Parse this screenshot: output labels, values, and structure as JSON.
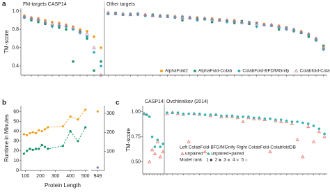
{
  "panels": [
    "a",
    "b",
    "c"
  ],
  "chart_data": [
    {
      "type": "dot",
      "title": "FM-targets CASP14",
      "y_label": "TM-score",
      "categories": [
        null,
        null,
        null,
        null,
        null,
        null,
        null,
        null,
        null,
        null,
        null,
        null
      ],
      "ylim": [
        0.3,
        1.03
      ],
      "yticks": [
        0.4,
        0.6,
        0.8,
        {
          "value": 1.0,
          "label": "1.0"
        }
      ],
      "series": [
        {
          "color": "#f0a020",
          "shape": "circle",
          "values": [
            0.95,
            0.93,
            0.92,
            0.9,
            0.88,
            0.87,
            0.85,
            0.83,
            0.8,
            0.78,
            0.72,
            0.6
          ]
        },
        {
          "color": "#17906a",
          "shape": "square",
          "values": [
            0.93,
            0.9,
            0.88,
            0.86,
            0.84,
            0.82,
            0.8,
            0.45,
            0.78,
            0.7,
            0.35,
            0.45
          ]
        },
        {
          "color": "#2aa6b8",
          "shape": "diamond",
          "values": [
            0.94,
            0.92,
            0.9,
            0.88,
            0.83,
            0.84,
            0.83,
            0.8,
            0.76,
            0.72,
            0.55,
            0.4
          ]
        },
        {
          "color": "#c27aa8",
          "shape": "triangle",
          "values": [
            0.94,
            0.92,
            0.91,
            0.88,
            0.86,
            0.85,
            0.84,
            0.82,
            0.78,
            0.75,
            0.6,
            0.3
          ]
        }
      ]
    },
    {
      "type": "dot",
      "title": "Other targets",
      "categories": [
        null,
        null,
        null,
        null,
        null,
        null,
        null,
        null,
        null,
        null,
        null,
        null,
        null,
        null,
        null,
        null,
        null,
        null,
        null,
        null,
        null,
        null,
        null,
        null,
        null,
        null,
        null,
        null,
        null,
        null
      ],
      "ylim": [
        0.3,
        1.03
      ],
      "legend": "bottom-right",
      "series": [
        {
          "name": "AlphaFold2",
          "color": "#f0a020",
          "shape": "circle",
          "values": [
            0.98,
            0.98,
            0.97,
            0.97,
            0.97,
            0.96,
            0.96,
            0.95,
            0.95,
            0.94,
            0.94,
            0.93,
            0.93,
            0.92,
            0.92,
            0.91,
            0.9,
            0.9,
            0.89,
            0.88,
            0.87,
            0.86,
            0.85,
            0.84,
            0.82,
            0.8,
            0.78,
            0.75,
            0.7,
            0.6
          ]
        },
        {
          "name": "AlphaFold-Colab",
          "color": "#17906a",
          "shape": "square",
          "values": [
            0.97,
            0.98,
            0.96,
            0.96,
            0.97,
            0.95,
            0.96,
            0.94,
            0.95,
            0.93,
            0.9,
            0.93,
            0.92,
            0.91,
            0.88,
            0.9,
            0.89,
            0.87,
            0.89,
            0.86,
            0.87,
            0.85,
            0.84,
            0.8,
            0.82,
            0.78,
            0.76,
            0.72,
            0.68,
            0.62
          ]
        },
        {
          "name": "ColabFold-BFD/MGnify",
          "color": "#2aa6b8",
          "shape": "diamond",
          "values": [
            0.97,
            0.97,
            0.96,
            0.97,
            0.96,
            0.95,
            0.95,
            0.95,
            0.94,
            0.93,
            0.94,
            0.92,
            0.9,
            0.92,
            0.91,
            0.9,
            0.88,
            0.89,
            0.87,
            0.88,
            0.83,
            0.85,
            0.84,
            0.83,
            0.8,
            0.79,
            0.77,
            0.74,
            0.69,
            0.58
          ]
        },
        {
          "name": "Colabfold-ColabfoldDB",
          "color": "#c27aa8",
          "shape": "triangle",
          "values": [
            0.98,
            0.97,
            0.97,
            0.96,
            0.97,
            0.96,
            0.95,
            0.95,
            0.94,
            0.94,
            0.93,
            0.93,
            0.92,
            0.92,
            0.91,
            0.9,
            0.9,
            0.89,
            0.88,
            0.87,
            0.86,
            0.85,
            0.85,
            0.83,
            0.81,
            0.8,
            0.77,
            0.75,
            0.7,
            0.6
          ]
        }
      ]
    },
    {
      "type": "line",
      "y_label": "Runtime in Minutes",
      "x_label": "Protein Length",
      "x": [
        90,
        110,
        130,
        150,
        170,
        190,
        210,
        230,
        250,
        350,
        400,
        450,
        500
      ],
      "xlim": [
        70,
        520
      ],
      "xticks": [
        100,
        200,
        300,
        400,
        500
      ],
      "ylim": [
        0,
        66
      ],
      "yticks": [
        0,
        10,
        20,
        30,
        40,
        50,
        60
      ],
      "series": [
        {
          "color": "#f0a020",
          "values": [
            37,
            36,
            38,
            39,
            38,
            41,
            40,
            42,
            44,
            45,
            55,
            52,
            62
          ]
        },
        {
          "color": "#17906a",
          "values": [
            17,
            20,
            22,
            21,
            22,
            22,
            26,
            24,
            22,
            25,
            40,
            30,
            44
          ]
        }
      ]
    },
    {
      "type": "line",
      "x": [
        949
      ],
      "xlim": [
        900,
        1000
      ],
      "xticks": [
        949
      ],
      "ylim": [
        0,
        340
      ],
      "yticks": [
        100,
        200,
        300
      ],
      "series": [
        {
          "color": "#f0a020",
          "values": [
            310
          ]
        },
        {
          "color": "#8a6fb0",
          "values": [
            15
          ]
        }
      ]
    },
    {
      "type": "dot",
      "title": "CASP14",
      "y_label": "TM-score",
      "categories": [
        null,
        null,
        null,
        null,
        null,
        null,
        null,
        null
      ],
      "ylim": [
        0.38,
        1.06
      ],
      "yticks": [
        {
          "value": 0.5,
          "label": "0.50"
        },
        {
          "value": 0.75,
          "label": "0.75"
        },
        {
          "value": 1.0,
          "label": "1.00"
        }
      ],
      "series": [
        {
          "color": "#e8736c",
          "shape": "triangle",
          "values": [
            0.98,
            0.97,
            0.5,
            0.62,
            0.58,
            0.7,
            0.55,
            0.6
          ]
        },
        {
          "color": "#36b3b3",
          "shape": "circle",
          "values": [
            0.98,
            0.97,
            0.95,
            0.75,
            0.65,
            0.72,
            0.65,
            0.68
          ]
        }
      ]
    },
    {
      "type": "dot",
      "title": "Ovchinnikov (2014)",
      "categories": [
        null,
        null,
        null,
        null,
        null,
        null,
        null,
        null,
        null,
        null,
        null,
        null,
        null,
        null,
        null,
        null,
        null,
        null,
        null,
        null,
        null,
        null,
        null,
        null,
        null,
        null,
        null,
        null,
        null,
        null
      ],
      "ylim": [
        0.38,
        1.06
      ],
      "legend_note": "Left ColabFold-BFD/MGnify Right ColabFold-ColabfoldDB",
      "legend_title": "Model rank",
      "ranks": [
        1,
        2,
        3,
        4,
        5
      ],
      "series": [
        {
          "name": "unpaired",
          "color": "#e8736c",
          "shape": "triangle",
          "values": [
            0.98,
            0.99,
            0.98,
            0.97,
            0.7,
            0.98,
            0.97,
            0.6,
            0.96,
            0.97,
            0.95,
            0.95,
            0.95,
            0.94,
            0.9,
            0.94,
            0.93,
            0.93,
            0.92,
            0.6,
            0.91,
            0.9,
            0.9,
            0.88,
            0.72,
            0.55,
            0.85,
            0.7,
            0.8,
            0.75
          ]
        },
        {
          "name": "unpaired+paired",
          "color": "#36b3b3",
          "shape": "circle",
          "values": [
            0.99,
            0.99,
            0.99,
            0.98,
            0.98,
            0.98,
            0.98,
            0.97,
            0.97,
            0.97,
            0.96,
            0.96,
            0.96,
            0.95,
            0.95,
            0.95,
            0.94,
            0.94,
            0.93,
            0.93,
            0.92,
            0.92,
            0.91,
            0.9,
            0.9,
            0.89,
            0.88,
            0.86,
            0.83,
            0.78
          ]
        }
      ]
    }
  ]
}
